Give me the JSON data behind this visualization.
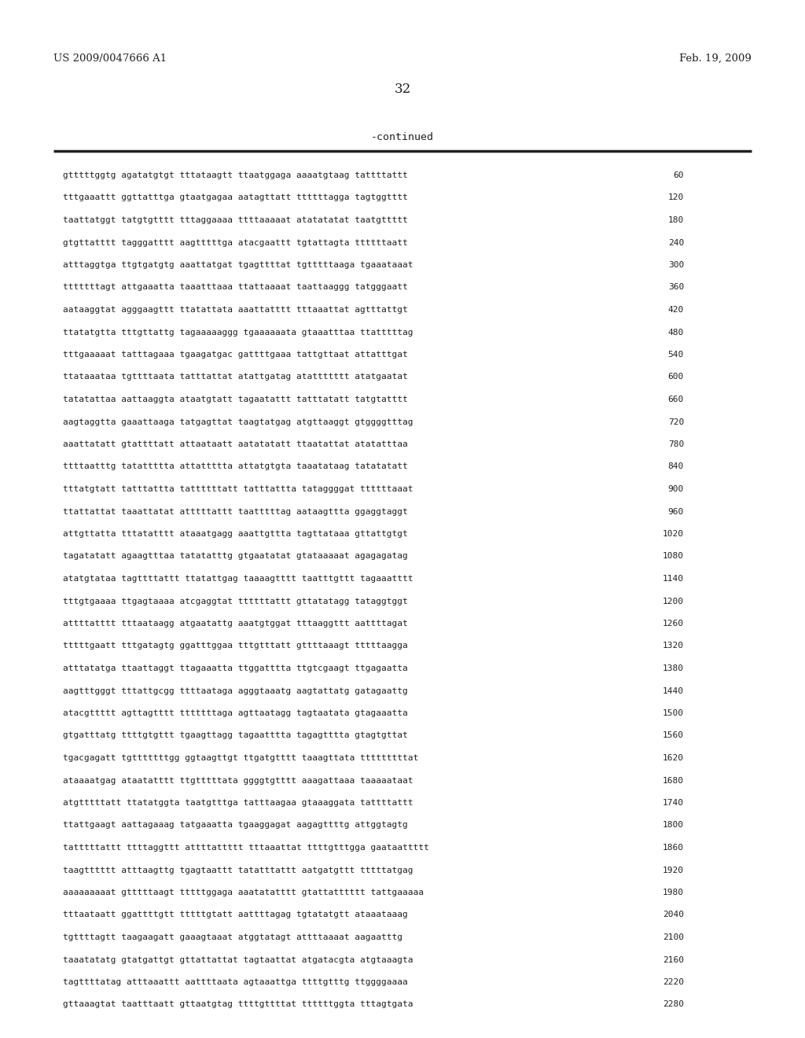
{
  "header_left": "US 2009/0047666 A1",
  "header_right": "Feb. 19, 2009",
  "page_number": "32",
  "continued_label": "-continued",
  "background_color": "#ffffff",
  "text_color": "#231f20",
  "sequence_lines": [
    [
      "gtttttggtg agatatgtgt tttataagtt ttaatggaga aaaatgtaag tattttattt",
      "60"
    ],
    [
      "tttgaaattt ggttatttga gtaatgagaa aatagttatt ttttttagga tagtggtttt",
      "120"
    ],
    [
      "taattatggt tatgtgtttt tttaggaaaa ttttaaaaat atatatatat taatgttttt",
      "180"
    ],
    [
      "gtgttatttt tagggatttt aagtttttga atacgaattt tgtattagta ttttttaatt",
      "240"
    ],
    [
      "atttaggtga ttgtgatgtg aaattatgat tgagttttat tgtttttaaga tgaaataaat",
      "300"
    ],
    [
      "tttttttagt attgaaatta taaatttaaa ttattaaaat taattaaggg tatgggaatt",
      "360"
    ],
    [
      "aataaggtat agggaagttt ttatattata aaattatttt tttaaattat agtttattgt",
      "420"
    ],
    [
      "ttatatgtta tttgttattg tagaaaaaggg tgaaaaaata gtaaatttaa ttatttttag",
      "480"
    ],
    [
      "tttgaaaaat tatttagaaa tgaagatgac gattttgaaa tattgttaat attatttgat",
      "540"
    ],
    [
      "ttataaataa tgttttaata tatttattat atattgatag atattttttt atatgaatat",
      "600"
    ],
    [
      "tatatattaa aattaaggta ataatgtatt tagaatattt tatttatatt tatgtatttt",
      "660"
    ],
    [
      "aagtaggtta gaaattaaga tatgagttat taagtatgag atgttaaggt gtggggtttag",
      "720"
    ],
    [
      "aaattatatt gtattttatt attaataatt aatatatatt ttaatattat atatatttaa",
      "780"
    ],
    [
      "ttttaatttg tatattttta attattttta attatgtgta taaatataag tatatatatt",
      "840"
    ],
    [
      "tttatgtatt tatttattta tattttttatt tatttattta tataggggat ttttttaaat",
      "900"
    ],
    [
      "ttattattat taaattatat atttttattt taatttttag aataagttta ggaggtaggt",
      "960"
    ],
    [
      "attgttatta tttatatttt ataaatgagg aaattgttta tagttataaa gttattgtgt",
      "1020"
    ],
    [
      "tagatatatt agaagtttaa tatatatttg gtgaatatat gtataaaaat agagagatag",
      "1080"
    ],
    [
      "atatgtataa tagttttattt ttatattgag taaaagtttt taatttgttt tagaaatttt",
      "1140"
    ],
    [
      "tttgtgaaaa ttgagtaaaa atcgaggtat ttttttattt gttatatagg tataggtggt",
      "1200"
    ],
    [
      "attttatttt tttaataagg atgaatattg aaatgtggat tttaaggttt aattttagat",
      "1260"
    ],
    [
      "tttttgaatt tttgatagtg ggatttggaa tttgtttatt gttttaaagt tttttaagga",
      "1320"
    ],
    [
      "atttatatga ttaattaggt ttagaaatta ttggatttta ttgtcgaagt ttgagaatta",
      "1380"
    ],
    [
      "aagtttgggt tttattgcgg ttttaataga agggtaaatg aagtattatg gatagaattg",
      "1440"
    ],
    [
      "atacgttttt agttagtttt tttttttaga agttaatagg tagtaatata gtagaaatta",
      "1500"
    ],
    [
      "gtgatttatg ttttgtgttt tgaagttagg tagaatttta tagagtttta gtagtgttat",
      "1560"
    ],
    [
      "tgacgagatt tgtttttttgg ggtaagttgt ttgatgtttt taaagttata tttttttttat",
      "1620"
    ],
    [
      "ataaaatgag ataatatttt ttgtttttata ggggtgtttt aaagattaaa taaaaataat",
      "1680"
    ],
    [
      "atgtttttatt ttatatggta taatgtttga tatttaagaa gtaaaggata tattttattt",
      "1740"
    ],
    [
      "ttattgaagt aattagaaag tatgaaatta tgaaggagat aagagttttg attggtagtg",
      "1800"
    ],
    [
      "tatttttattt ttttaggttt attttattttt tttaaattat ttttgtttgga gaataattttt",
      "1860"
    ],
    [
      "taagtttttt atttaagttg tgagtaattt tatatttattt aatgatgttt tttttatgag",
      "1920"
    ],
    [
      "aaaaaaaaat gtttttaagt tttttggaga aaatatatttt gtattatttttt tattgaaaaa",
      "1980"
    ],
    [
      "tttaataatt ggattttgtt tttttgtatt aattttagag tgtatatgtt ataaataaag",
      "2040"
    ],
    [
      "tgttttagtt taagaagatt gaaagtaaat atggtatagt attttaaaat aagaatttg",
      "2100"
    ],
    [
      "taaatatatg gtatgattgt gttattattat tagtaattat atgatacgta atgtaaagta",
      "2160"
    ],
    [
      "tagttttatag atttaaattt aattttaata agtaaattga ttttgtttg ttggggaaaa",
      "2220"
    ],
    [
      "gttaaagtat taatttaatt gttaatgtag ttttgttttat ttttttggta tttagtgata",
      "2280"
    ]
  ]
}
